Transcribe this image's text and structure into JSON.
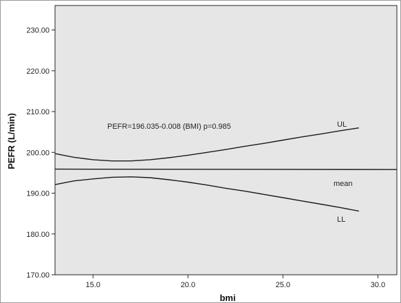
{
  "chart_data": {
    "type": "line",
    "title": "",
    "xlabel": "bmi",
    "ylabel": "PEFR (L/min)",
    "xlim": [
      13.0,
      31.0
    ],
    "ylim": [
      170.0,
      236.0
    ],
    "xticks": [
      15,
      20,
      25,
      30
    ],
    "xtick_labels": [
      "15.0",
      "20.0",
      "25.0",
      "30.0"
    ],
    "yticks": [
      170,
      180,
      190,
      200,
      210,
      220,
      230
    ],
    "ytick_labels": [
      "170.00",
      "180.00",
      "190.00",
      "200.00",
      "210.00",
      "220.00",
      "230.00"
    ],
    "grid": false,
    "plot_background": "#e6e6e6",
    "line_color": "#1a1a1a",
    "annotation": "PEFR=196.035-0.008 (BMI)     p=0.985",
    "series": [
      {
        "name": "UL",
        "x": [
          13,
          14,
          15,
          16,
          17,
          18,
          19,
          20,
          21,
          22,
          23,
          24,
          25,
          26,
          27,
          28,
          29
        ],
        "y": [
          199.7,
          198.8,
          198.2,
          197.9,
          197.9,
          198.2,
          198.7,
          199.3,
          200.0,
          200.7,
          201.5,
          202.2,
          203.0,
          203.8,
          204.5,
          205.3,
          206.0
        ]
      },
      {
        "name": "mean",
        "x": [
          13,
          31
        ],
        "y": [
          195.9,
          195.8
        ]
      },
      {
        "name": "LL",
        "x": [
          13,
          14,
          15,
          16,
          17,
          18,
          19,
          20,
          21,
          22,
          23,
          24,
          25,
          26,
          27,
          28,
          29
        ],
        "y": [
          192.1,
          193.0,
          193.5,
          193.9,
          194.0,
          193.8,
          193.3,
          192.7,
          192.0,
          191.2,
          190.5,
          189.7,
          188.9,
          188.1,
          187.3,
          186.5,
          185.6
        ]
      }
    ]
  }
}
